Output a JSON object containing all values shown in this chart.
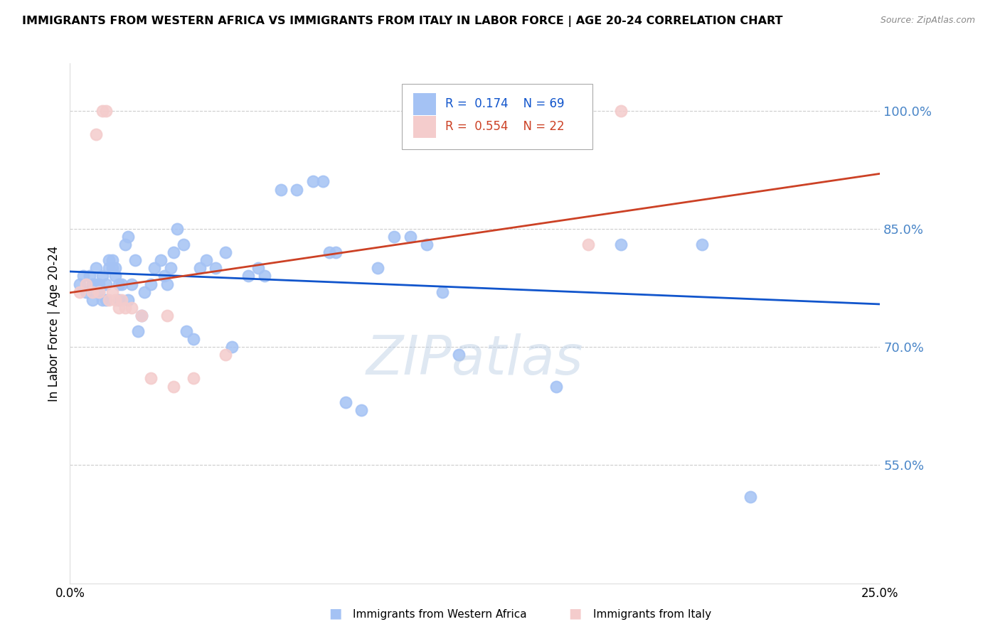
{
  "title": "IMMIGRANTS FROM WESTERN AFRICA VS IMMIGRANTS FROM ITALY IN LABOR FORCE | AGE 20-24 CORRELATION CHART",
  "source": "Source: ZipAtlas.com",
  "ylabel": "In Labor Force | Age 20-24",
  "xlim": [
    0.0,
    0.25
  ],
  "ylim": [
    0.4,
    1.06
  ],
  "yticks": [
    0.55,
    0.7,
    0.85,
    1.0
  ],
  "ytick_labels": [
    "55.0%",
    "70.0%",
    "85.0%",
    "100.0%"
  ],
  "xticks": [
    0.0,
    0.05,
    0.1,
    0.15,
    0.2,
    0.25
  ],
  "xtick_labels": [
    "0.0%",
    "",
    "",
    "",
    "",
    "25.0%"
  ],
  "blue_color": "#a4c2f4",
  "pink_color": "#f4cccc",
  "blue_line_color": "#1155cc",
  "pink_line_color": "#cc4125",
  "text_color_blue": "#1155cc",
  "text_color_pink": "#cc4125",
  "axis_text_color": "#4a86c8",
  "watermark": "ZIPatlas",
  "legend_blue_R": "0.174",
  "legend_blue_N": "69",
  "legend_pink_R": "0.554",
  "legend_pink_N": "22",
  "legend_label_blue": "Immigrants from Western Africa",
  "legend_label_pink": "Immigrants from Italy",
  "blue_x": [
    0.003,
    0.004,
    0.005,
    0.006,
    0.007,
    0.007,
    0.008,
    0.008,
    0.009,
    0.009,
    0.01,
    0.01,
    0.011,
    0.011,
    0.012,
    0.012,
    0.013,
    0.013,
    0.014,
    0.014,
    0.015,
    0.015,
    0.016,
    0.017,
    0.018,
    0.018,
    0.019,
    0.02,
    0.021,
    0.022,
    0.023,
    0.025,
    0.026,
    0.028,
    0.029,
    0.03,
    0.031,
    0.032,
    0.033,
    0.035,
    0.036,
    0.038,
    0.04,
    0.042,
    0.045,
    0.048,
    0.05,
    0.055,
    0.058,
    0.06,
    0.065,
    0.07,
    0.075,
    0.078,
    0.08,
    0.082,
    0.085,
    0.09,
    0.095,
    0.1,
    0.105,
    0.11,
    0.115,
    0.12,
    0.13,
    0.15,
    0.17,
    0.195,
    0.21
  ],
  "blue_y": [
    0.78,
    0.79,
    0.77,
    0.79,
    0.78,
    0.76,
    0.78,
    0.8,
    0.78,
    0.77,
    0.76,
    0.79,
    0.78,
    0.76,
    0.8,
    0.81,
    0.81,
    0.8,
    0.8,
    0.79,
    0.78,
    0.76,
    0.78,
    0.83,
    0.84,
    0.76,
    0.78,
    0.81,
    0.72,
    0.74,
    0.77,
    0.78,
    0.8,
    0.81,
    0.79,
    0.78,
    0.8,
    0.82,
    0.85,
    0.83,
    0.72,
    0.71,
    0.8,
    0.81,
    0.8,
    0.82,
    0.7,
    0.79,
    0.8,
    0.79,
    0.9,
    0.9,
    0.91,
    0.91,
    0.82,
    0.82,
    0.63,
    0.62,
    0.8,
    0.84,
    0.84,
    0.83,
    0.77,
    0.69,
    1.0,
    0.65,
    0.83,
    0.83,
    0.51
  ],
  "pink_x": [
    0.003,
    0.005,
    0.007,
    0.008,
    0.009,
    0.01,
    0.011,
    0.012,
    0.013,
    0.014,
    0.015,
    0.016,
    0.017,
    0.019,
    0.022,
    0.025,
    0.03,
    0.032,
    0.038,
    0.048,
    0.16,
    0.17
  ],
  "pink_y": [
    0.77,
    0.78,
    0.77,
    0.97,
    0.77,
    1.0,
    1.0,
    0.76,
    0.77,
    0.76,
    0.75,
    0.76,
    0.75,
    0.75,
    0.74,
    0.66,
    0.74,
    0.65,
    0.66,
    0.69,
    0.83,
    1.0
  ],
  "background_color": "#ffffff",
  "grid_color": "#cccccc"
}
